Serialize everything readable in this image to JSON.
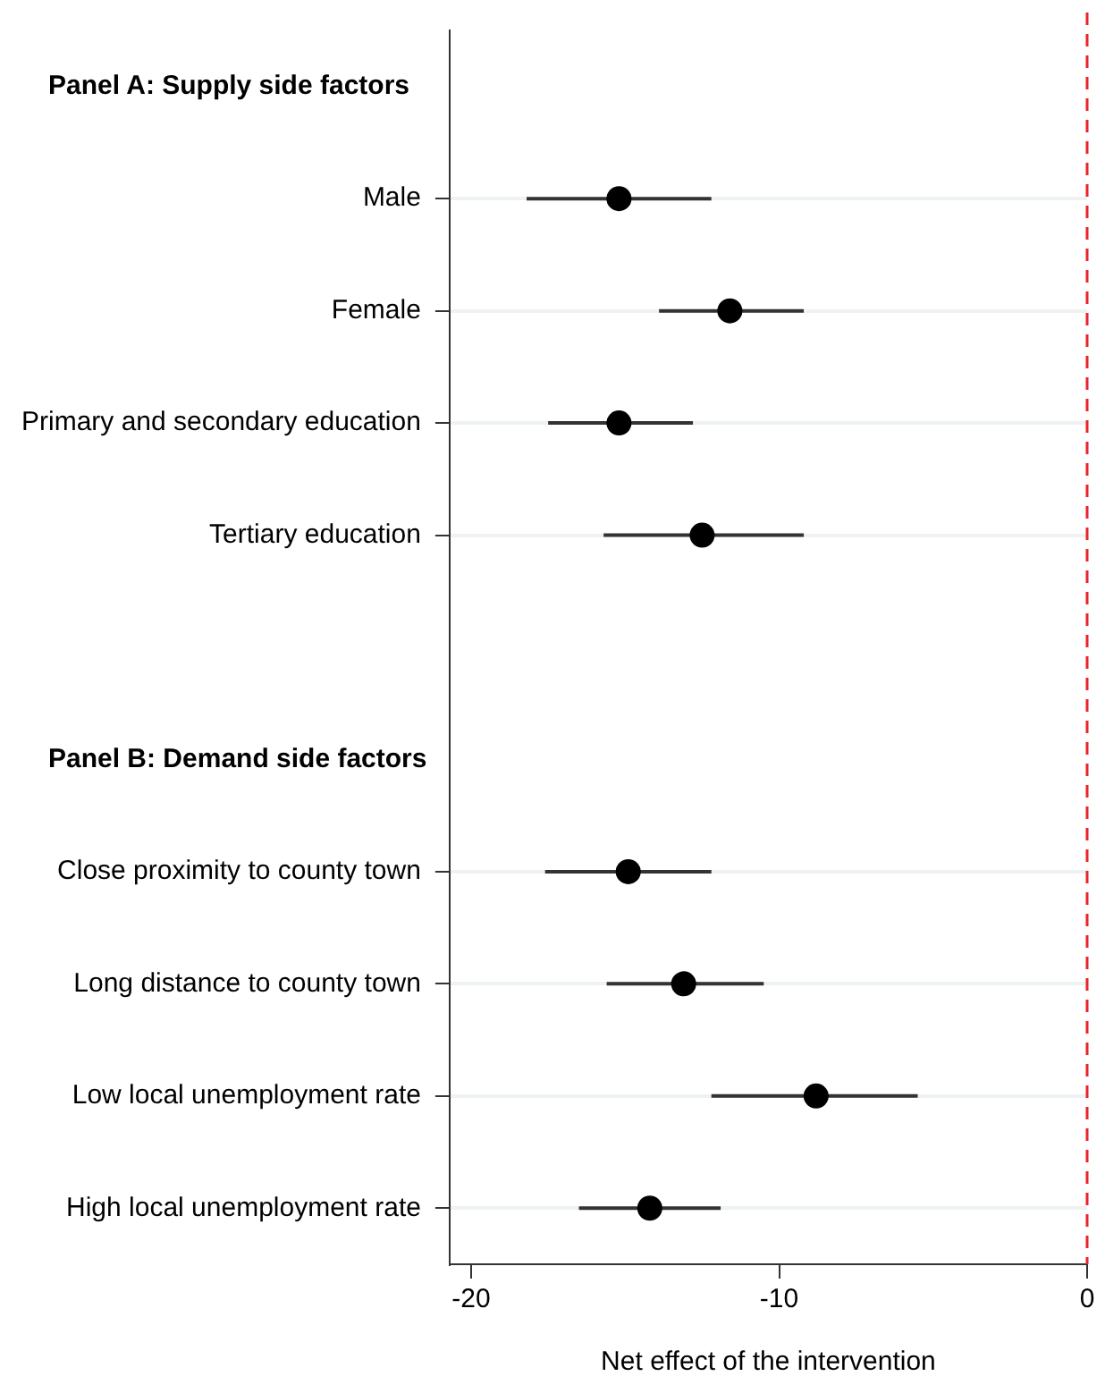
{
  "chart_data": {
    "type": "scatter",
    "orientation": "horizontal",
    "xlabel": "Net effect of the intervention",
    "annotations": [
      "Panel A: Supply side factors",
      "Panel B: Demand side factors"
    ],
    "categories": [
      null,
      "Male",
      "Female",
      "Primary and secondary education",
      "Tertiary education",
      null,
      null,
      "Close proximity to county town",
      "Long distance to county town",
      "Low local unemployment rate",
      "High local unemployment rate"
    ],
    "values": [
      null,
      -15.2,
      -11.6,
      -15.2,
      -12.5,
      null,
      null,
      -14.9,
      -13.1,
      -8.8,
      -14.2
    ],
    "errors": [
      null,
      [
        -18.2,
        -12.2
      ],
      [
        -13.9,
        -9.2
      ],
      [
        -17.5,
        -12.8
      ],
      [
        -15.7,
        -9.2
      ],
      null,
      null,
      [
        -17.6,
        -12.2
      ],
      [
        -15.6,
        -10.5
      ],
      [
        -12.2,
        -5.5
      ],
      [
        -16.5,
        -11.9
      ]
    ],
    "color": "#000000",
    "marker": "circle",
    "xlim": [
      -20.7,
      0
    ],
    "xticks": [
      -20,
      -10,
      0
    ],
    "grid": "y",
    "legend": false,
    "ref_lines": [
      {
        "axis": "x",
        "value": 0,
        "color": "#e8252a",
        "line_style": "dashed"
      }
    ]
  }
}
